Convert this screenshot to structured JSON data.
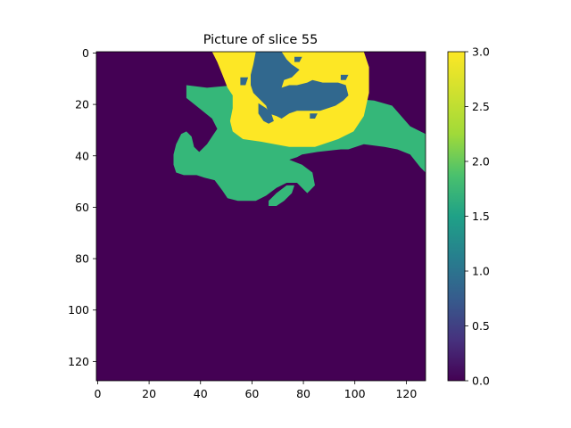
{
  "chart_data": {
    "type": "heatmap",
    "title": "Picture of slice 55",
    "image_shape": [
      128,
      128
    ],
    "x_ticks": [
      "0",
      "20",
      "40",
      "60",
      "80",
      "100",
      "120"
    ],
    "y_ticks": [
      "0",
      "20",
      "40",
      "60",
      "80",
      "100",
      "120"
    ],
    "colorbar": {
      "colormap": "viridis",
      "range": [
        0.0,
        3.0
      ],
      "ticks": [
        "0.0",
        "0.5",
        "1.0",
        "1.5",
        "2.0",
        "2.5",
        "3.0"
      ]
    },
    "class_colors": {
      "0": "#440154",
      "1": "#31688e",
      "2": "#35b779",
      "3": "#fde725"
    },
    "regions": [
      {
        "value": 2,
        "polygons": [
          [
            [
              35,
              13
            ],
            [
              43,
              14
            ],
            [
              54,
              13
            ],
            [
              96,
              18
            ],
            [
              108,
              19
            ],
            [
              115,
              21
            ],
            [
              122,
              29
            ],
            [
              128,
              32
            ],
            [
              128,
              47
            ],
            [
              126,
              45
            ],
            [
              122,
              40
            ],
            [
              117,
              38
            ],
            [
              112,
              37
            ],
            [
              104,
              36
            ],
            [
              98,
              38
            ],
            [
              95,
              38
            ],
            [
              86,
              39
            ],
            [
              80,
              40
            ],
            [
              78,
              41
            ],
            [
              75,
              42
            ],
            [
              80,
              44
            ],
            [
              84,
              47
            ],
            [
              85,
              52
            ],
            [
              82,
              55
            ],
            [
              78,
              51
            ],
            [
              74,
              51
            ],
            [
              70,
              53
            ],
            [
              66,
              56
            ],
            [
              62,
              58
            ],
            [
              55,
              58
            ],
            [
              51,
              57
            ],
            [
              49,
              54
            ],
            [
              46,
              50
            ],
            [
              42,
              49
            ],
            [
              39,
              48
            ],
            [
              34,
              48
            ],
            [
              31,
              47
            ],
            [
              30,
              44
            ],
            [
              30,
              40
            ],
            [
              31,
              36
            ],
            [
              33,
              32
            ],
            [
              35,
              31
            ],
            [
              37,
              33
            ],
            [
              38,
              37
            ],
            [
              40,
              39
            ],
            [
              43,
              36
            ],
            [
              45,
              33
            ],
            [
              47,
              30
            ],
            [
              45,
              26
            ],
            [
              40,
              22
            ],
            [
              35,
              18
            ]
          ],
          [
            [
              67,
              58
            ],
            [
              70,
              55
            ],
            [
              74,
              52
            ],
            [
              77,
              52
            ],
            [
              76,
              55
            ],
            [
              73,
              58
            ],
            [
              70,
              60
            ],
            [
              67,
              60
            ]
          ]
        ]
      },
      {
        "value": 3,
        "polygons": [
          [
            [
              45,
              0
            ],
            [
              104,
              0
            ],
            [
              106,
              6
            ],
            [
              106,
              16
            ],
            [
              104,
              25
            ],
            [
              100,
              31
            ],
            [
              94,
              34
            ],
            [
              85,
              37
            ],
            [
              75,
              37
            ],
            [
              64,
              35
            ],
            [
              57,
              34
            ],
            [
              53,
              31
            ],
            [
              52,
              27
            ],
            [
              53,
              22
            ],
            [
              53,
              17
            ],
            [
              51,
              14
            ],
            [
              49,
              9
            ],
            [
              47,
              4
            ]
          ]
        ]
      },
      {
        "value": 1,
        "polygons": [
          [
            [
              62,
              0
            ],
            [
              72,
              0
            ],
            [
              74,
              3
            ],
            [
              76,
              5
            ],
            [
              79,
              7
            ],
            [
              76,
              10
            ],
            [
              73,
              11
            ],
            [
              72,
              14
            ],
            [
              75,
              13
            ],
            [
              78,
              13
            ],
            [
              82,
              12
            ],
            [
              84,
              11
            ],
            [
              88,
              12
            ],
            [
              94,
              12
            ],
            [
              97,
              13
            ],
            [
              98,
              17
            ],
            [
              96,
              19
            ],
            [
              93,
              21
            ],
            [
              90,
              22
            ],
            [
              87,
              23
            ],
            [
              82,
              23
            ],
            [
              78,
              23
            ],
            [
              75,
              24
            ],
            [
              72,
              26
            ],
            [
              70,
              25
            ],
            [
              67,
              24
            ],
            [
              66,
              21
            ],
            [
              63,
              18
            ],
            [
              61,
              16
            ],
            [
              60,
              13
            ],
            [
              60,
              9
            ],
            [
              61,
              5
            ]
          ],
          [
            [
              63,
              20
            ],
            [
              66,
              22
            ],
            [
              68,
              24
            ],
            [
              69,
              27
            ],
            [
              67,
              28
            ],
            [
              65,
              27
            ],
            [
              63,
              24
            ]
          ],
          [
            [
              77,
              2
            ],
            [
              80,
              2
            ],
            [
              79,
              4
            ],
            [
              77,
              4
            ]
          ],
          [
            [
              56,
              10
            ],
            [
              59,
              10
            ],
            [
              58,
              13
            ],
            [
              56,
              13
            ]
          ],
          [
            [
              95,
              9
            ],
            [
              98,
              9
            ],
            [
              97,
              11
            ],
            [
              95,
              11
            ]
          ],
          [
            [
              83,
              24
            ],
            [
              86,
              24
            ],
            [
              85,
              26
            ],
            [
              83,
              26
            ]
          ]
        ]
      }
    ]
  }
}
